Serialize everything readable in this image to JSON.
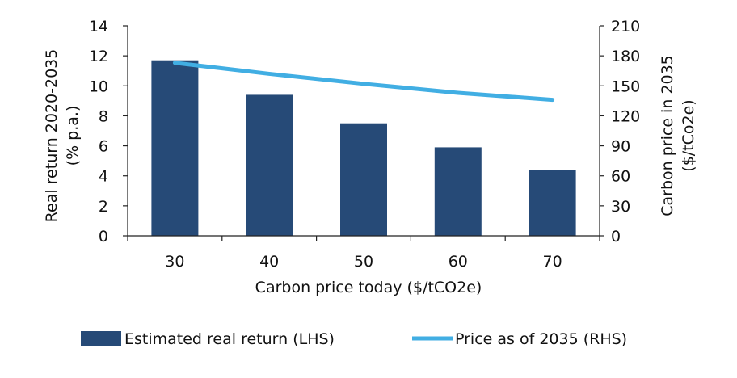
{
  "chart_data": {
    "type": "bar",
    "categories": [
      "30",
      "40",
      "50",
      "60",
      "70"
    ],
    "series": [
      {
        "name": "Estimated real return (LHS)",
        "type": "bar",
        "axis": "left",
        "color": "#264a77",
        "values": [
          11.7,
          9.4,
          7.5,
          5.9,
          4.4
        ]
      },
      {
        "name": "Price as of 2035 (RHS)",
        "type": "line",
        "axis": "right",
        "color": "#41aee3",
        "values": [
          173,
          162,
          152,
          143,
          136
        ]
      }
    ],
    "xlabel": "Carbon price today ($/tCO2e)",
    "ylabel": [
      "Real return 2020-2035",
      "(% p.a.)"
    ],
    "y2label": [
      "Carbon price in 2035",
      "($/tCo2e)"
    ],
    "ylim": [
      0,
      14
    ],
    "y_ticks": [
      "0",
      "2",
      "4",
      "6",
      "8",
      "10",
      "12",
      "14"
    ],
    "y2lim": [
      0,
      210
    ],
    "y2_ticks": [
      "0",
      "30",
      "60",
      "90",
      "120",
      "150",
      "180",
      "210"
    ],
    "legend_position": "bottom",
    "grid": false
  }
}
